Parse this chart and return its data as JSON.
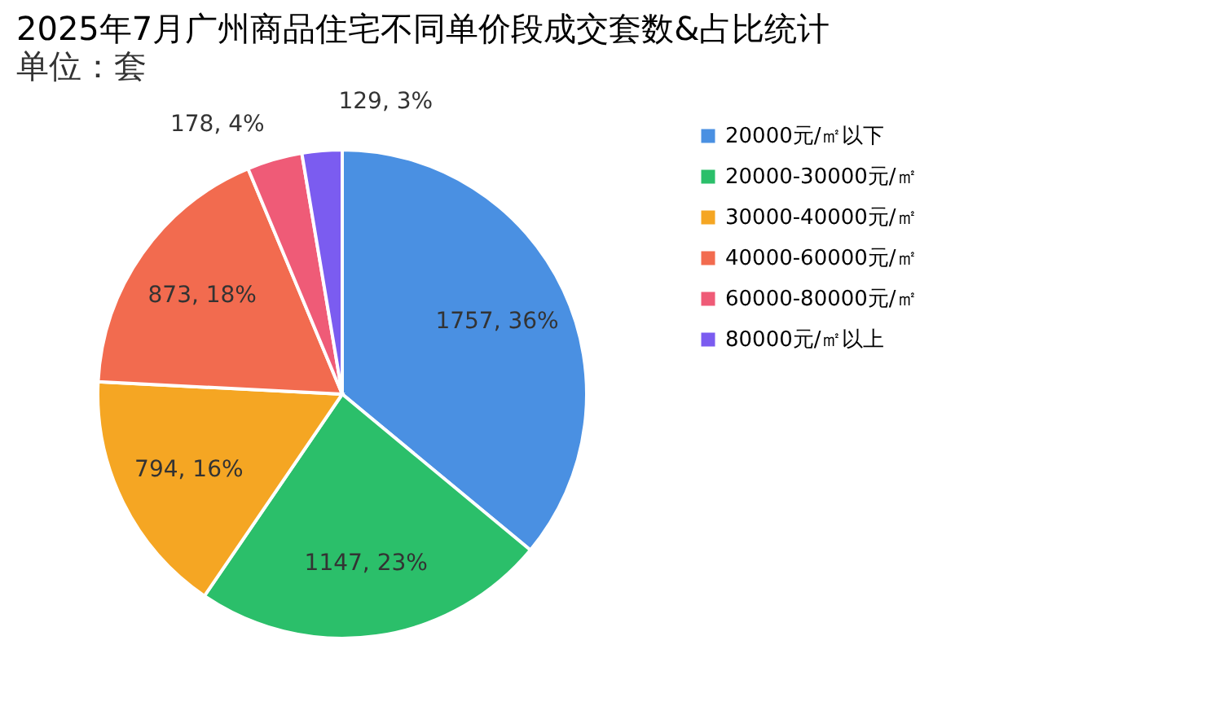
{
  "chart_data": {
    "type": "pie",
    "title": "2025年7月广州商品住宅不同单价段成交套数&占比统计",
    "subtitle": "单位：套",
    "categories": [
      "20000元/㎡以下",
      "20000-30000元/㎡",
      "30000-40000元/㎡",
      "40000-60000元/㎡",
      "60000-80000元/㎡",
      "80000元/㎡以上"
    ],
    "values": [
      1757,
      1147,
      794,
      873,
      178,
      129
    ],
    "value_labels": [
      "1757, 36%",
      "1147, 23%",
      "794, 16%",
      "873, 18%",
      "178, 4%",
      "129, 3%"
    ],
    "colors": [
      "#4a90e2",
      "#2bbf6a",
      "#f5a623",
      "#f26b4f",
      "#ef5b77",
      "#7b5cf0"
    ],
    "legend": "right"
  }
}
